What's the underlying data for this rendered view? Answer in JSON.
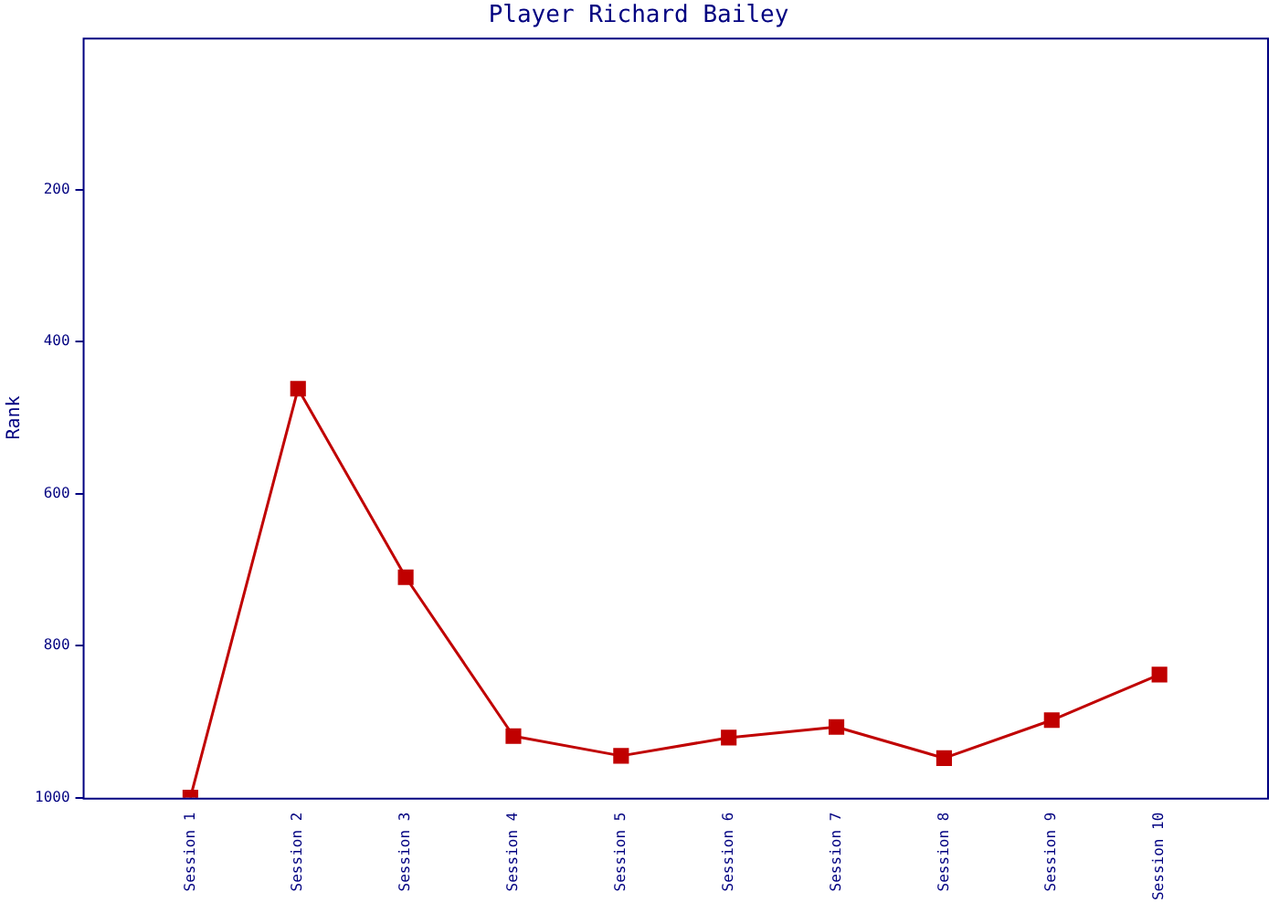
{
  "chart_data": {
    "type": "line",
    "title": "Player Richard Bailey",
    "ylabel": "Rank",
    "categories": [
      "Session 1",
      "Session 2",
      "Session 3",
      "Session 4",
      "Session 5",
      "Session 6",
      "Session 7",
      "Session 8",
      "Session 9",
      "Session 10"
    ],
    "series": [
      {
        "color": "#c00000",
        "values": [
          1000,
          462,
          710,
          919,
          945,
          921,
          907,
          948,
          898,
          838
        ]
      }
    ],
    "ylim": [
      1000,
      0
    ],
    "yticks": [
      200,
      400,
      600,
      800,
      1000
    ],
    "grid": false,
    "legend": false,
    "marker": "square",
    "line_style": "solid"
  }
}
